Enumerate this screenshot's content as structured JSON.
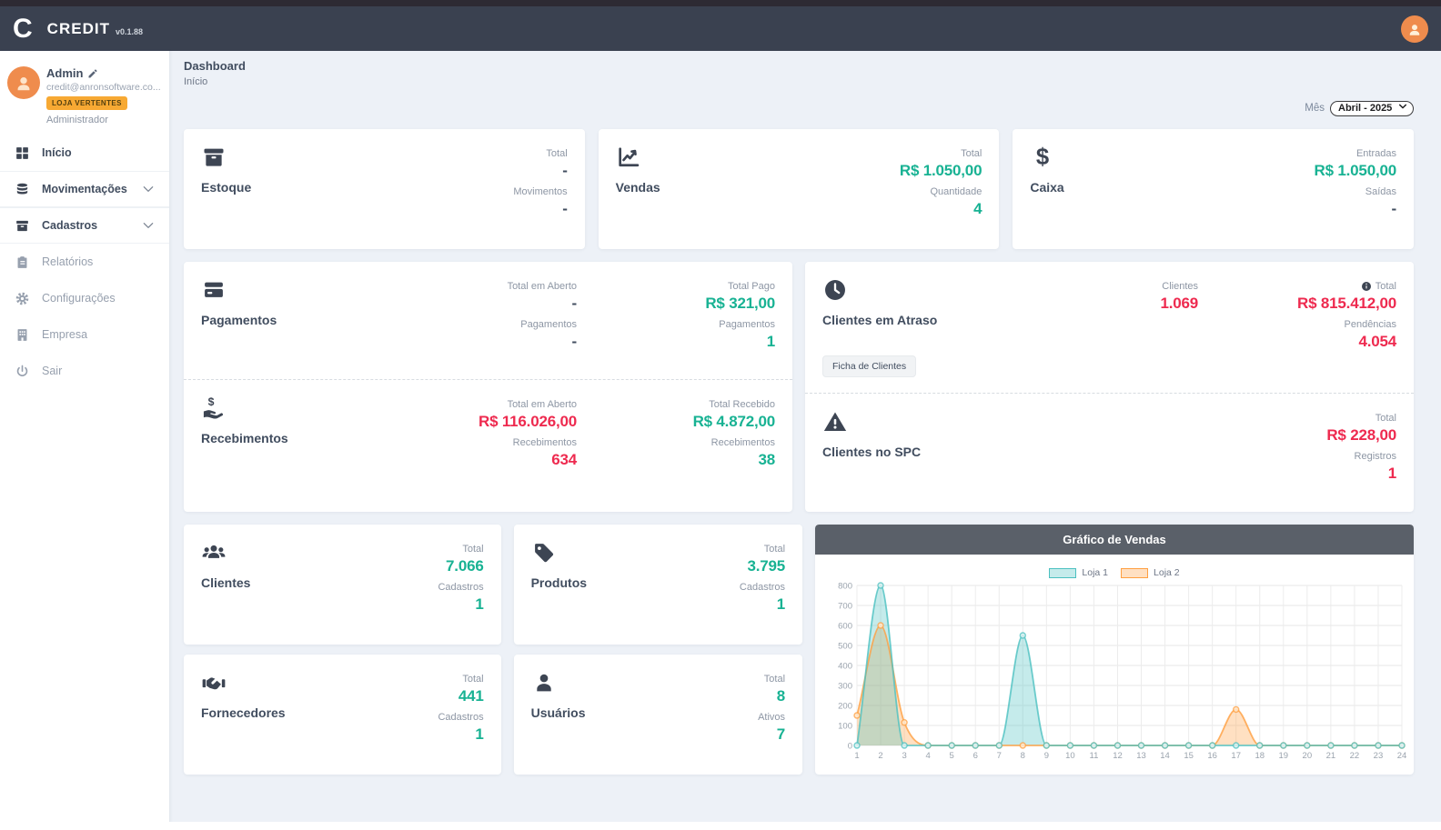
{
  "app": {
    "logo_letter": "C",
    "name": "CREDIT",
    "version": "v0.1.88"
  },
  "theme": {
    "navbar": "#3a4150",
    "accent_teal": "#18b293",
    "accent_red": "#ee2a4f",
    "text_dark": "#414d5f",
    "badge_orange": "#f7a933",
    "avatar_orange": "#ef8c4d",
    "chart_header_grey": "#5a6069"
  },
  "user": {
    "name": "Admin",
    "email": "credit@anronsoftware.co...",
    "badge": "LOJA VERTENTES",
    "role": "Administrador"
  },
  "sidebar": {
    "items": [
      {
        "label": "Início",
        "icon": "grid-icon",
        "type": "link",
        "muted": false
      },
      {
        "label": "Movimentações",
        "icon": "database-icon",
        "type": "accordion",
        "muted": false
      },
      {
        "label": "Cadastros",
        "icon": "archive-icon",
        "type": "accordion",
        "muted": false
      },
      {
        "label": "Relatórios",
        "icon": "clipboard-icon",
        "type": "link",
        "muted": true
      },
      {
        "label": "Configurações",
        "icon": "gear-icon",
        "type": "link",
        "muted": true
      },
      {
        "label": "Empresa",
        "icon": "building-icon",
        "type": "link",
        "muted": true
      },
      {
        "label": "Sair",
        "icon": "power-icon",
        "type": "link",
        "muted": true
      }
    ]
  },
  "breadcrumb": {
    "title": "Dashboard",
    "subtitle": "Início"
  },
  "month_filter": {
    "label": "Mês",
    "value": "Abril - 2025"
  },
  "cards": {
    "row1": [
      {
        "title": "Estoque",
        "icon": "box-icon",
        "columns": [
          [
            {
              "label": "Total",
              "value": "-",
              "color": "dark"
            },
            {
              "label": "Movimentos",
              "value": "-",
              "color": "dark"
            }
          ]
        ]
      },
      {
        "title": "Vendas",
        "icon": "chart-line-icon",
        "columns": [
          [
            {
              "label": "Total",
              "value": "R$ 1.050,00",
              "color": "teal"
            },
            {
              "label": "Quantidade",
              "value": "4",
              "color": "teal"
            }
          ]
        ]
      },
      {
        "title": "Caixa",
        "icon": "dollar-icon",
        "columns": [
          [
            {
              "label": "Entradas",
              "value": "R$ 1.050,00",
              "color": "teal"
            },
            {
              "label": "Saídas",
              "value": "-",
              "color": "dark"
            }
          ]
        ]
      }
    ],
    "finance": [
      {
        "title": "Pagamentos",
        "icon": "credit-card-icon",
        "columns": [
          [
            {
              "label": "Total em Aberto",
              "value": "-",
              "color": "dark"
            },
            {
              "label": "Pagamentos",
              "value": "-",
              "color": "dark"
            }
          ],
          [
            {
              "label": "Total Pago",
              "value": "R$ 321,00",
              "color": "teal"
            },
            {
              "label": "Pagamentos",
              "value": "1",
              "color": "teal"
            }
          ]
        ]
      },
      {
        "title": "Recebimentos",
        "icon": "hand-dollar-icon",
        "columns": [
          [
            {
              "label": "Total em Aberto",
              "value": "R$ 116.026,00",
              "color": "red"
            },
            {
              "label": "Recebimentos",
              "value": "634",
              "color": "red"
            }
          ],
          [
            {
              "label": "Total Recebido",
              "value": "R$ 4.872,00",
              "color": "teal"
            },
            {
              "label": "Recebimentos",
              "value": "38",
              "color": "teal"
            }
          ]
        ]
      }
    ],
    "clients": [
      {
        "title": "Clientes em Atraso",
        "icon": "clock-icon",
        "button": "Ficha de Clientes",
        "columns": [
          [
            {
              "label": "Clientes",
              "value": "1.069",
              "color": "red"
            }
          ],
          [
            {
              "label": "Total",
              "value": "R$ 815.412,00",
              "color": "red",
              "info": true
            },
            {
              "label": "Pendências",
              "value": "4.054",
              "color": "red"
            }
          ]
        ]
      },
      {
        "title": "Clientes no SPC",
        "icon": "warning-icon",
        "columns": [
          [],
          [
            {
              "label": "Total",
              "value": "R$ 228,00",
              "color": "red"
            },
            {
              "label": "Registros",
              "value": "1",
              "color": "red"
            }
          ]
        ]
      }
    ],
    "mini": [
      {
        "title": "Clientes",
        "icon": "users-icon",
        "columns": [
          [
            {
              "label": "Total",
              "value": "7.066",
              "color": "teal"
            },
            {
              "label": "Cadastros",
              "value": "1",
              "color": "teal"
            }
          ]
        ]
      },
      {
        "title": "Produtos",
        "icon": "tag-icon",
        "columns": [
          [
            {
              "label": "Total",
              "value": "3.795",
              "color": "teal"
            },
            {
              "label": "Cadastros",
              "value": "1",
              "color": "teal"
            }
          ]
        ]
      },
      {
        "title": "Fornecedores",
        "icon": "handshake-icon",
        "columns": [
          [
            {
              "label": "Total",
              "value": "441",
              "color": "teal"
            },
            {
              "label": "Cadastros",
              "value": "1",
              "color": "teal"
            }
          ]
        ]
      },
      {
        "title": "Usuários",
        "icon": "user-icon",
        "columns": [
          [
            {
              "label": "Total",
              "value": "8",
              "color": "teal"
            },
            {
              "label": "Ativos",
              "value": "7",
              "color": "teal"
            }
          ]
        ]
      }
    ]
  },
  "chart_data": {
    "type": "line",
    "title": "Gráfico de Vendas",
    "x": [
      1,
      2,
      3,
      4,
      5,
      6,
      7,
      8,
      9,
      10,
      11,
      12,
      13,
      14,
      15,
      16,
      17,
      18,
      19,
      20,
      21,
      22,
      23,
      24
    ],
    "xlabel": "",
    "ylabel": "",
    "ylim": [
      0,
      800
    ],
    "ytick": 100,
    "grid": true,
    "legend_position": "top",
    "smooth": true,
    "series": [
      {
        "name": "Loja 1",
        "color": "#4bc0c0",
        "fill": "rgba(75,192,192,0.32)",
        "marker_fill": "#d9f0f0",
        "values": [
          0,
          800,
          0,
          0,
          0,
          0,
          0,
          550,
          0,
          0,
          0,
          0,
          0,
          0,
          0,
          0,
          0,
          0,
          0,
          0,
          0,
          0,
          0,
          0
        ]
      },
      {
        "name": "Loja 2",
        "color": "#ff9f40",
        "fill": "rgba(255,159,64,0.32)",
        "marker_fill": "#ffe7cd",
        "values": [
          150,
          600,
          115,
          0,
          0,
          0,
          0,
          0,
          0,
          0,
          0,
          0,
          0,
          0,
          0,
          0,
          180,
          0,
          0,
          0,
          0,
          0,
          0,
          0
        ]
      }
    ]
  }
}
